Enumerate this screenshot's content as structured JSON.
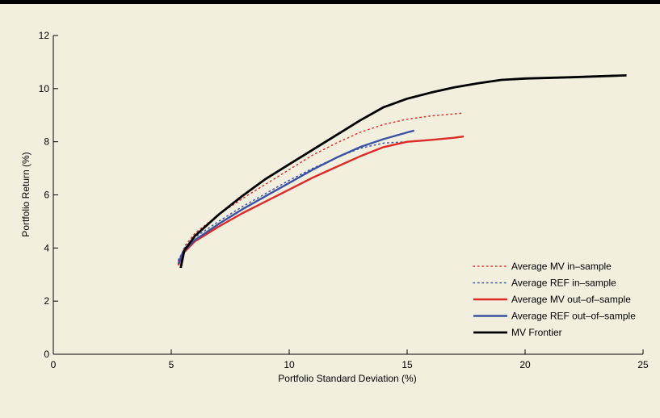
{
  "chart_data": {
    "type": "line",
    "title": "",
    "xlabel": "Portfolio Standard Deviation (%)",
    "ylabel": "Portfolio Return (%)",
    "xlim": [
      0,
      25
    ],
    "ylim": [
      0,
      12
    ],
    "xticks": [
      0,
      5,
      10,
      15,
      20,
      25
    ],
    "yticks": [
      0,
      2,
      4,
      6,
      8,
      10,
      12
    ],
    "grid": false,
    "legend_position": "bottom-right",
    "series": [
      {
        "name": "Average MV in–sample",
        "color": "#e0302a",
        "style": "dotted",
        "points": [
          [
            5.3,
            3.5
          ],
          [
            5.6,
            4.1
          ],
          [
            6.0,
            4.55
          ],
          [
            7.0,
            5.25
          ],
          [
            8.0,
            5.85
          ],
          [
            9.0,
            6.4
          ],
          [
            10.0,
            6.95
          ],
          [
            11.0,
            7.5
          ],
          [
            12.0,
            7.95
          ],
          [
            13.0,
            8.35
          ],
          [
            14.0,
            8.65
          ],
          [
            15.0,
            8.85
          ],
          [
            16.0,
            8.97
          ],
          [
            17.0,
            9.05
          ],
          [
            17.4,
            9.08
          ]
        ]
      },
      {
        "name": "Average REF in–sample",
        "color": "#3b55a8",
        "style": "dotted",
        "points": [
          [
            5.3,
            3.55
          ],
          [
            5.6,
            4.05
          ],
          [
            6.0,
            4.4
          ],
          [
            7.0,
            5.0
          ],
          [
            8.0,
            5.55
          ],
          [
            9.0,
            6.05
          ],
          [
            10.0,
            6.55
          ],
          [
            11.0,
            7.0
          ],
          [
            12.0,
            7.4
          ],
          [
            13.0,
            7.75
          ],
          [
            14.0,
            7.95
          ],
          [
            15.0,
            8.0
          ]
        ]
      },
      {
        "name": "Average MV out–of–sample",
        "color": "#dd2a25",
        "style": "solid",
        "points": [
          [
            5.3,
            3.35
          ],
          [
            5.5,
            3.8
          ],
          [
            6.0,
            4.25
          ],
          [
            7.0,
            4.8
          ],
          [
            8.0,
            5.3
          ],
          [
            9.0,
            5.75
          ],
          [
            10.0,
            6.2
          ],
          [
            11.0,
            6.65
          ],
          [
            12.0,
            7.05
          ],
          [
            13.0,
            7.45
          ],
          [
            14.0,
            7.8
          ],
          [
            15.0,
            8.0
          ],
          [
            16.0,
            8.07
          ],
          [
            17.0,
            8.15
          ],
          [
            17.4,
            8.2
          ]
        ]
      },
      {
        "name": "Average REF out–of–sample",
        "color": "#3a52a4",
        "style": "solid",
        "points": [
          [
            5.3,
            3.4
          ],
          [
            5.5,
            3.85
          ],
          [
            6.0,
            4.3
          ],
          [
            7.0,
            4.9
          ],
          [
            8.0,
            5.45
          ],
          [
            9.0,
            5.95
          ],
          [
            10.0,
            6.45
          ],
          [
            11.0,
            6.95
          ],
          [
            12.0,
            7.4
          ],
          [
            13.0,
            7.8
          ],
          [
            14.0,
            8.1
          ],
          [
            15.0,
            8.35
          ],
          [
            15.3,
            8.42
          ]
        ]
      },
      {
        "name": "MV Frontier",
        "color": "#000000",
        "style": "solid",
        "points": [
          [
            5.4,
            3.25
          ],
          [
            5.55,
            3.9
          ],
          [
            6.0,
            4.45
          ],
          [
            7.0,
            5.25
          ],
          [
            8.0,
            5.95
          ],
          [
            9.0,
            6.6
          ],
          [
            10.0,
            7.15
          ],
          [
            11.0,
            7.7
          ],
          [
            12.0,
            8.25
          ],
          [
            13.0,
            8.8
          ],
          [
            14.0,
            9.3
          ],
          [
            15.0,
            9.62
          ],
          [
            16.0,
            9.85
          ],
          [
            17.0,
            10.05
          ],
          [
            18.0,
            10.2
          ],
          [
            19.0,
            10.33
          ],
          [
            20.0,
            10.38
          ],
          [
            22.0,
            10.43
          ],
          [
            24.3,
            10.5
          ]
        ]
      }
    ]
  }
}
